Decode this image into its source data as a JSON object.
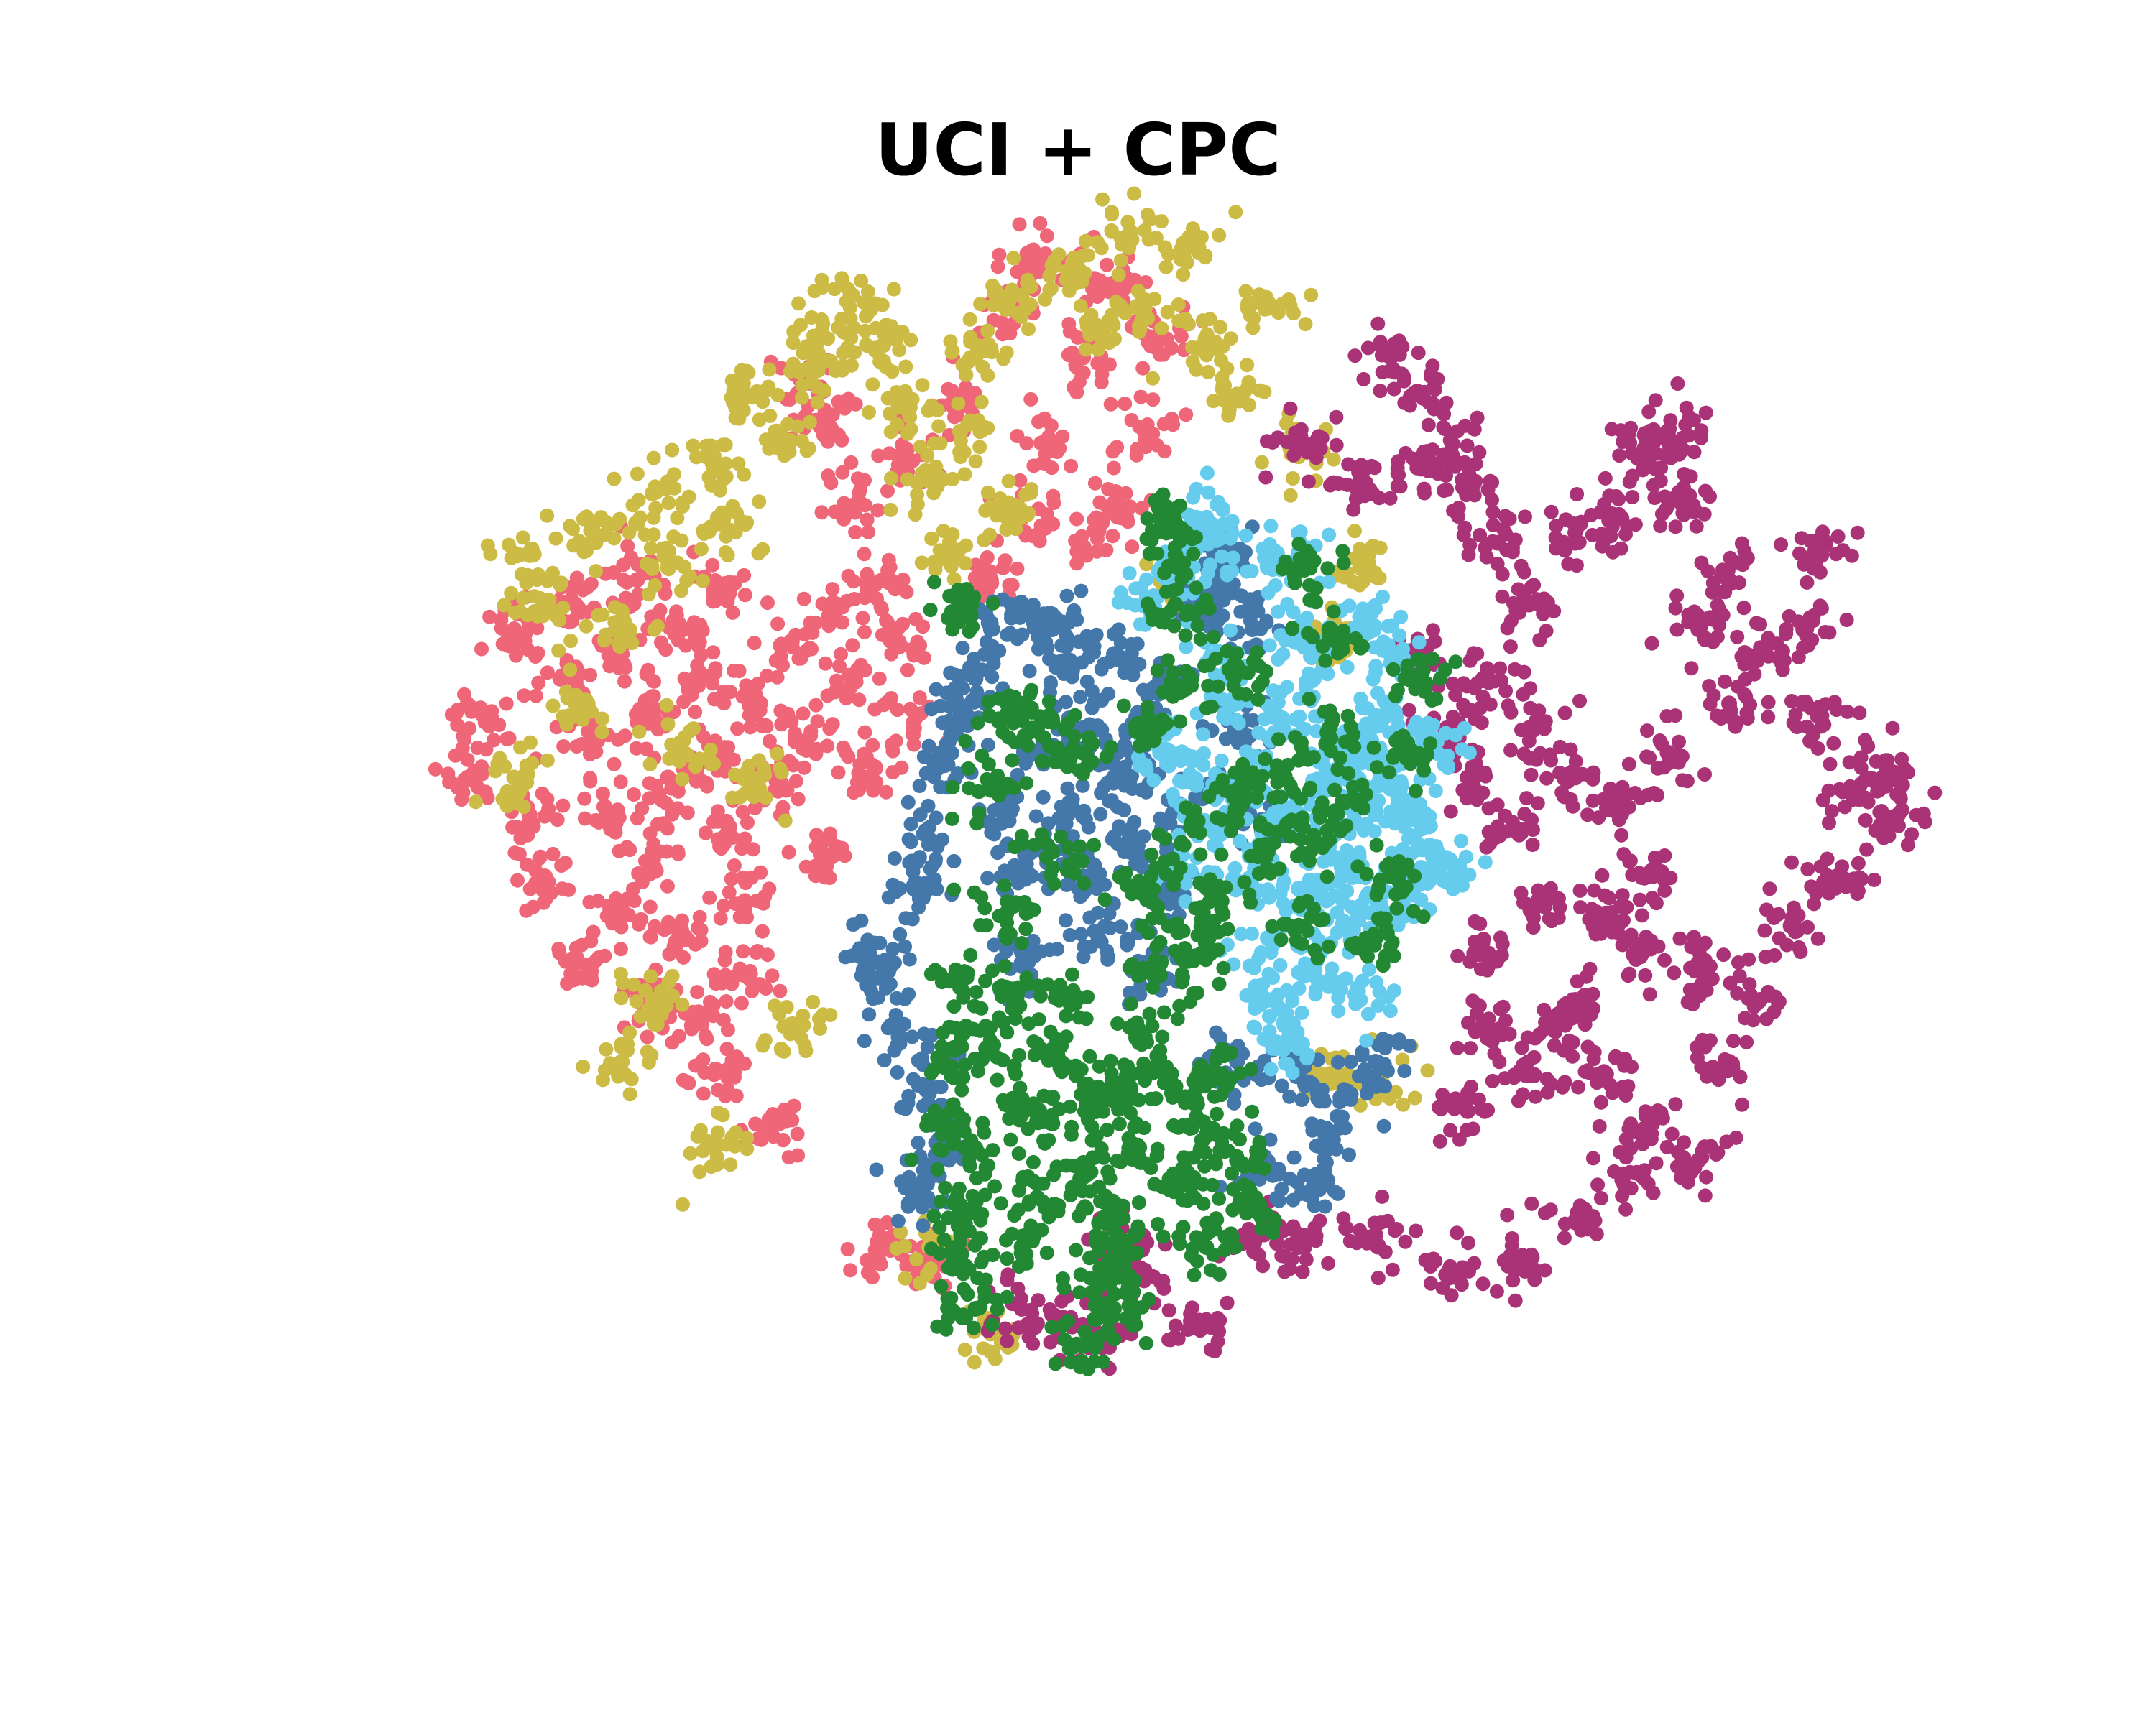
{
  "chart_data": {
    "type": "scatter",
    "title": "UCI + CPC",
    "xlabel": "",
    "ylabel": "",
    "axes_visible": false,
    "grid": false,
    "legend": "none",
    "xlim": [
      0,
      100
    ],
    "ylim": [
      0,
      100
    ],
    "series": [
      {
        "color": "#ee6677",
        "points": [
          [
            8,
            58
          ],
          [
            9,
            63
          ],
          [
            11,
            70
          ],
          [
            12,
            55
          ],
          [
            13,
            50
          ],
          [
            14,
            66
          ],
          [
            15,
            72
          ],
          [
            16,
            61
          ],
          [
            17,
            55
          ],
          [
            18,
            47
          ],
          [
            18,
            68
          ],
          [
            19,
            74
          ],
          [
            20,
            63
          ],
          [
            20,
            52
          ],
          [
            21,
            58
          ],
          [
            22,
            70
          ],
          [
            22,
            45
          ],
          [
            23,
            66
          ],
          [
            24,
            60
          ],
          [
            25,
            54
          ],
          [
            25,
            73
          ],
          [
            26,
            48
          ],
          [
            27,
            64
          ],
          [
            28,
            57
          ],
          [
            29,
            69
          ],
          [
            30,
            61
          ],
          [
            31,
            52
          ],
          [
            32,
            72
          ],
          [
            33,
            66
          ],
          [
            34,
            58
          ],
          [
            35,
            74
          ],
          [
            36,
            69
          ],
          [
            37,
            62
          ],
          [
            15,
            43
          ],
          [
            19,
            40
          ],
          [
            23,
            39
          ],
          [
            26,
            42
          ],
          [
            24,
            34
          ],
          [
            28,
            30
          ],
          [
            35,
            20
          ],
          [
            38,
            19
          ],
          [
            30,
            90
          ],
          [
            31,
            87
          ],
          [
            33,
            80
          ],
          [
            36,
            84
          ],
          [
            40,
            88
          ],
          [
            43,
            96
          ],
          [
            46,
            85
          ],
          [
            49,
            78
          ],
          [
            52,
            86
          ],
          [
            48,
            92
          ],
          [
            50,
            98
          ],
          [
            45,
            100
          ],
          [
            44,
            79
          ],
          [
            53,
            94
          ],
          [
            50,
            80
          ],
          [
            42,
            74
          ]
        ]
      },
      {
        "color": "#ccbb44",
        "points": [
          [
            12,
            76
          ],
          [
            13,
            72
          ],
          [
            15,
            64
          ],
          [
            16,
            78
          ],
          [
            18,
            70
          ],
          [
            20,
            81
          ],
          [
            21,
            75
          ],
          [
            24,
            83
          ],
          [
            25,
            78
          ],
          [
            26,
            89
          ],
          [
            28,
            86
          ],
          [
            30,
            91
          ],
          [
            31,
            94
          ],
          [
            33,
            97
          ],
          [
            35,
            93
          ],
          [
            36,
            88
          ],
          [
            38,
            82
          ],
          [
            40,
            86
          ],
          [
            41,
            92
          ],
          [
            44,
            97
          ],
          [
            47,
            99
          ],
          [
            49,
            94
          ],
          [
            51,
            102
          ],
          [
            52,
            96
          ],
          [
            55,
            101
          ],
          [
            56,
            93
          ],
          [
            58,
            89
          ],
          [
            60,
            96
          ],
          [
            62,
            84
          ],
          [
            43,
            80
          ],
          [
            39,
            76
          ],
          [
            54,
            73
          ],
          [
            22,
            60
          ],
          [
            11,
            58
          ],
          [
            27,
            58
          ],
          [
            20,
            40
          ],
          [
            18,
            35
          ],
          [
            29,
            38
          ],
          [
            24,
            28
          ],
          [
            38,
            20
          ],
          [
            42,
            13
          ],
          [
            64,
            34
          ],
          [
            67,
            33
          ],
          [
            64,
            69
          ],
          [
            66,
            75
          ]
        ]
      },
      {
        "color": "#aa3377",
        "points": [
          [
            68,
            92
          ],
          [
            70,
            89
          ],
          [
            72,
            85
          ],
          [
            66,
            82
          ],
          [
            62,
            85
          ],
          [
            70,
            83
          ],
          [
            73,
            81
          ],
          [
            75,
            77
          ],
          [
            77,
            72
          ],
          [
            80,
            77
          ],
          [
            83,
            79
          ],
          [
            84,
            84
          ],
          [
            87,
            80
          ],
          [
            86,
            86
          ],
          [
            88,
            70
          ],
          [
            90,
            64
          ],
          [
            92,
            68
          ],
          [
            95,
            70
          ],
          [
            96,
            63
          ],
          [
            100,
            58
          ],
          [
            98,
            57
          ],
          [
            101,
            55
          ],
          [
            97,
            50
          ],
          [
            94,
            46
          ],
          [
            92,
            40
          ],
          [
            90,
            35
          ],
          [
            88,
            43
          ],
          [
            85,
            30
          ],
          [
            82,
            34
          ],
          [
            80,
            40
          ],
          [
            78,
            48
          ],
          [
            76,
            54
          ],
          [
            73,
            58
          ],
          [
            72,
            62
          ],
          [
            70,
            67
          ],
          [
            74,
            66
          ],
          [
            77,
            62
          ],
          [
            80,
            58
          ],
          [
            83,
            56
          ],
          [
            85,
            50
          ],
          [
            86,
            60
          ],
          [
            84,
            44
          ],
          [
            82,
            47
          ],
          [
            79,
            38
          ],
          [
            77,
            34
          ],
          [
            74,
            44
          ],
          [
            74,
            38
          ],
          [
            73,
            31
          ],
          [
            88,
            27
          ],
          [
            84,
            26
          ],
          [
            80,
            22
          ],
          [
            76,
            19
          ],
          [
            72,
            18
          ],
          [
            67,
            21
          ],
          [
            62,
            20
          ],
          [
            59,
            21
          ],
          [
            55,
            14
          ],
          [
            52,
            18
          ],
          [
            50,
            20
          ],
          [
            47,
            14
          ],
          [
            44,
            15
          ],
          [
            49,
            13
          ],
          [
            86,
            84
          ],
          [
            90,
            74
          ],
          [
            96,
            76
          ]
        ]
      },
      {
        "color": "#4477aa",
        "points": [
          [
            37,
            49
          ],
          [
            38,
            53
          ],
          [
            39,
            59
          ],
          [
            40,
            63
          ],
          [
            41,
            66
          ],
          [
            43,
            55
          ],
          [
            44,
            50
          ],
          [
            44,
            43
          ],
          [
            45,
            71
          ],
          [
            46,
            60
          ],
          [
            47,
            55
          ],
          [
            47,
            67
          ],
          [
            48,
            50
          ],
          [
            48,
            62
          ],
          [
            49,
            45
          ],
          [
            50,
            68
          ],
          [
            50,
            58
          ],
          [
            51,
            53
          ],
          [
            52,
            61
          ],
          [
            53,
            49
          ],
          [
            53,
            66
          ],
          [
            54,
            56
          ],
          [
            52,
            43
          ],
          [
            35,
            42
          ],
          [
            34,
            44
          ],
          [
            36,
            37
          ],
          [
            38,
            33
          ],
          [
            39,
            28
          ],
          [
            37,
            24
          ],
          [
            57,
            74
          ],
          [
            56,
            72
          ],
          [
            59,
            70
          ],
          [
            57,
            76
          ],
          [
            58,
            62
          ],
          [
            60,
            54
          ],
          [
            62,
            34
          ],
          [
            64,
            28
          ],
          [
            65,
            32
          ],
          [
            67,
            35
          ],
          [
            63,
            25
          ],
          [
            58,
            35
          ],
          [
            60,
            26
          ],
          [
            46,
            70
          ],
          [
            42,
            70
          ]
        ]
      },
      {
        "color": "#66ccee",
        "points": [
          [
            52,
            72
          ],
          [
            54,
            75
          ],
          [
            56,
            77
          ],
          [
            57,
            68
          ],
          [
            58,
            64
          ],
          [
            58,
            58
          ],
          [
            59,
            50
          ],
          [
            60,
            45
          ],
          [
            60,
            40
          ],
          [
            61,
            55
          ],
          [
            61,
            62
          ],
          [
            62,
            70
          ],
          [
            62,
            49
          ],
          [
            63,
            42
          ],
          [
            63,
            66
          ],
          [
            64,
            58
          ],
          [
            64,
            53
          ],
          [
            65,
            46
          ],
          [
            65,
            60
          ],
          [
            66,
            50
          ],
          [
            66,
            40
          ],
          [
            67,
            55
          ],
          [
            67,
            63
          ],
          [
            68,
            58
          ],
          [
            68,
            47
          ],
          [
            69,
            61
          ],
          [
            70,
            54
          ],
          [
            70,
            50
          ],
          [
            71,
            60
          ],
          [
            72,
            51
          ],
          [
            62,
            76
          ],
          [
            60,
            75
          ],
          [
            56,
            79
          ],
          [
            55,
            58
          ],
          [
            57,
            54
          ],
          [
            53,
            60
          ],
          [
            54,
            50
          ],
          [
            61,
            36
          ],
          [
            68,
            68
          ],
          [
            66,
            71
          ]
        ]
      },
      {
        "color": "#228833",
        "points": [
          [
            53,
            79
          ],
          [
            54,
            76
          ],
          [
            54,
            72
          ],
          [
            55,
            66
          ],
          [
            53,
            62
          ],
          [
            55,
            54
          ],
          [
            54,
            46
          ],
          [
            53,
            42
          ],
          [
            52,
            37
          ],
          [
            51,
            33
          ],
          [
            51,
            28
          ],
          [
            50,
            23
          ],
          [
            50,
            20
          ],
          [
            49,
            32
          ],
          [
            48,
            26
          ],
          [
            47,
            40
          ],
          [
            46,
            36
          ],
          [
            46,
            30
          ],
          [
            45,
            24
          ],
          [
            44,
            20
          ],
          [
            44,
            32
          ],
          [
            43,
            41
          ],
          [
            42,
            36
          ],
          [
            41,
            28
          ],
          [
            40,
            23
          ],
          [
            39,
            30
          ],
          [
            39,
            36
          ],
          [
            41,
            15
          ],
          [
            40,
            19
          ],
          [
            40,
            41
          ],
          [
            50,
            15
          ],
          [
            49,
            17
          ],
          [
            48,
            12
          ],
          [
            55,
            25
          ],
          [
            56,
            29
          ],
          [
            57,
            34
          ],
          [
            58,
            27
          ],
          [
            59,
            23
          ],
          [
            56,
            20
          ],
          [
            54,
            33
          ],
          [
            52,
            49
          ],
          [
            56,
            44
          ],
          [
            57,
            48
          ],
          [
            58,
            57
          ],
          [
            60,
            52
          ],
          [
            62,
            46
          ],
          [
            61,
            58
          ],
          [
            63,
            53
          ],
          [
            64,
            62
          ],
          [
            65,
            56
          ],
          [
            67,
            45
          ],
          [
            68,
            50
          ],
          [
            69,
            60
          ],
          [
            70,
            66
          ],
          [
            64,
            70
          ],
          [
            62,
            75
          ],
          [
            58,
            67
          ],
          [
            46,
            52
          ],
          [
            43,
            63
          ],
          [
            40,
            72
          ],
          [
            42,
            57
          ],
          [
            43,
            47
          ],
          [
            45,
            62
          ],
          [
            48,
            60
          ]
        ]
      }
    ]
  }
}
